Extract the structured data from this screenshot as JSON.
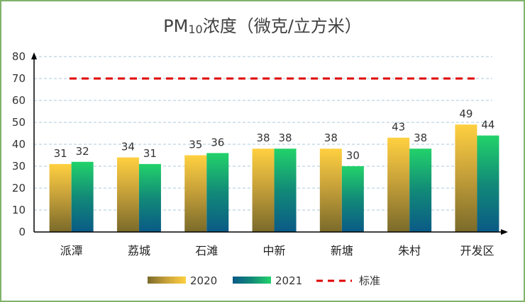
{
  "chart_data": {
    "type": "bar",
    "title": "PM",
    "title_sub": "10",
    "title_suffix": "浓度（微克/立方米）",
    "categories": [
      "派潭",
      "荔城",
      "石滩",
      "中新",
      "新塘",
      "朱村",
      "开发区"
    ],
    "series": [
      {
        "name": "2020",
        "values": [
          31,
          34,
          35,
          38,
          38,
          43,
          49
        ]
      },
      {
        "name": "2021",
        "values": [
          32,
          31,
          36,
          38,
          30,
          38,
          44
        ]
      }
    ],
    "reference_line": {
      "name": "标准",
      "value": 70,
      "style": "dashed",
      "color": "#e00000"
    },
    "ylim": [
      0,
      80
    ],
    "yticks": [
      0,
      10,
      20,
      30,
      40,
      50,
      60,
      70,
      80
    ],
    "xlabel": "",
    "ylabel": "",
    "grid": true,
    "legend_position": "bottom",
    "colors": {
      "2020_top": "#ffd040",
      "2020_bottom": "#7a6a2a",
      "2021_top": "#22d26a",
      "2021_bottom": "#0a5a86",
      "grid": "#a9c8de",
      "axis": "#000000",
      "border": "#7fb36a"
    }
  }
}
